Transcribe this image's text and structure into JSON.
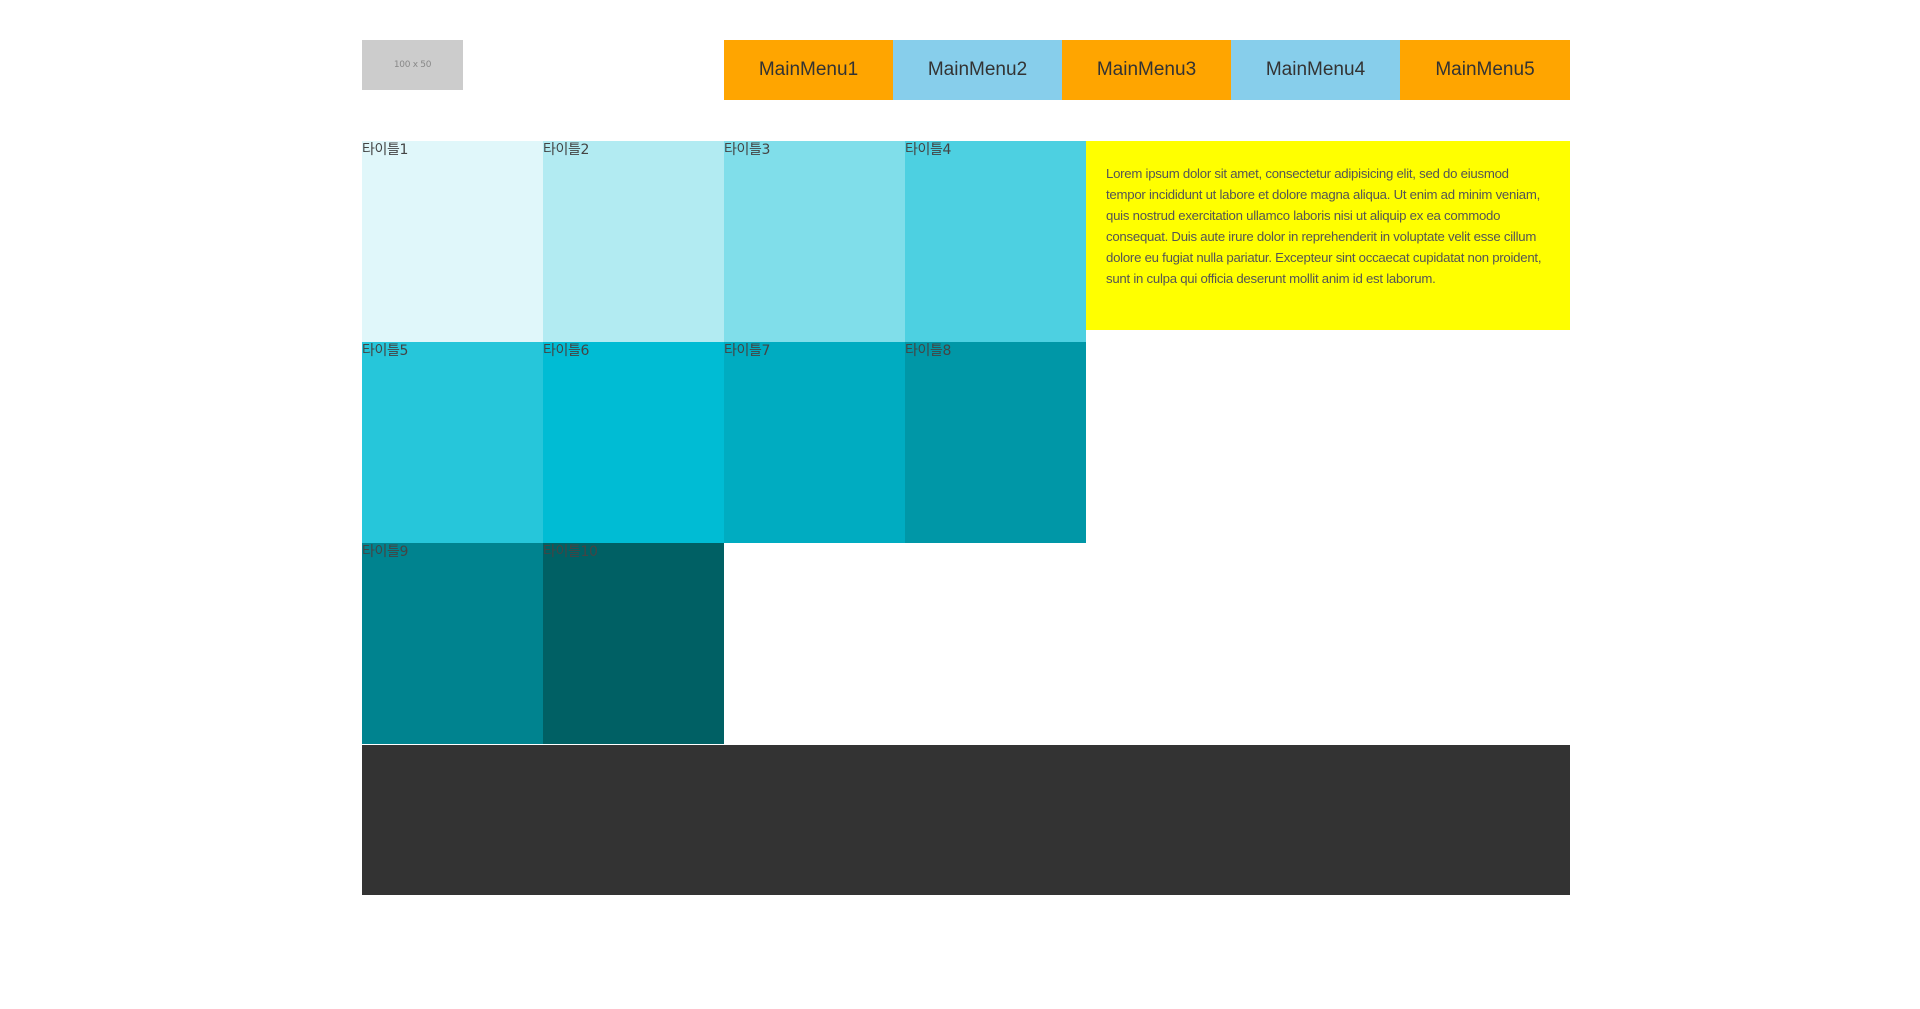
{
  "logo": {
    "text": "100 x 50"
  },
  "nav": {
    "items": [
      {
        "label": "MainMenu1",
        "color": "#ffa500"
      },
      {
        "label": "MainMenu2",
        "color": "#87ceeb"
      },
      {
        "label": "MainMenu3",
        "color": "#ffa500"
      },
      {
        "label": "MainMenu4",
        "color": "#87ceeb"
      },
      {
        "label": "MainMenu5",
        "color": "#ffa500"
      }
    ]
  },
  "tiles": [
    {
      "label": "타이틀1",
      "color": "#e0f7fa"
    },
    {
      "label": "타이틀2",
      "color": "#b2ebf2"
    },
    {
      "label": "타이틀3",
      "color": "#80deea"
    },
    {
      "label": "타이틀4",
      "color": "#4dd0e1"
    },
    {
      "label": "타이틀5",
      "color": "#26c6da"
    },
    {
      "label": "타이틀6",
      "color": "#00bcd4"
    },
    {
      "label": "타이틀7",
      "color": "#00acc1"
    },
    {
      "label": "타이틀8",
      "color": "#0097a7"
    },
    {
      "label": "타이틀9",
      "color": "#00838f"
    },
    {
      "label": "타이틀10",
      "color": "#006064"
    }
  ],
  "side": {
    "text": "Lorem ipsum dolor sit amet, consectetur adipisicing elit, sed do eiusmod tempor incididunt ut labore et dolore magna aliqua. Ut enim ad minim veniam, quis nostrud exercitation ullamco laboris nisi ut aliquip ex ea commodo consequat. Duis aute irure dolor in reprehenderit in voluptate velit esse cillum dolore eu fugiat nulla pariatur. Excepteur sint occaecat cupidatat non proident, sunt in culpa qui officia deserunt mollit anim id est laborum.",
    "background": "#ffff00"
  },
  "footer": {
    "background": "#333333"
  }
}
